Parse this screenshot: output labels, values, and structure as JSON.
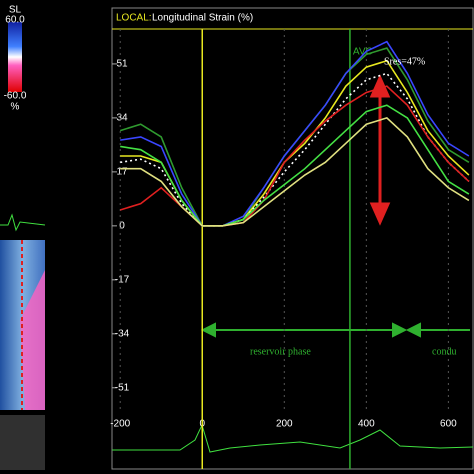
{
  "chart_data": {
    "type": "line",
    "header_label": "LOCAL:",
    "title": "Longitudinal Strain (%)",
    "x": [
      -200,
      -150,
      -100,
      -50,
      0,
      50,
      100,
      150,
      200,
      250,
      300,
      350,
      400,
      450,
      500,
      550,
      600,
      650
    ],
    "series": [
      {
        "color": "#2f9a2f",
        "values": [
          30,
          32,
          28,
          12,
          0,
          0,
          2,
          12,
          22,
          30,
          38,
          48,
          54,
          56,
          46,
          33,
          24,
          20
        ]
      },
      {
        "color": "#3a46ff",
        "values": [
          27,
          28,
          25,
          10,
          0,
          0,
          3,
          12,
          22,
          30,
          38,
          48,
          55,
          58,
          48,
          35,
          26,
          22
        ]
      },
      {
        "color": "#e8e820",
        "values": [
          22,
          22,
          20,
          8,
          0,
          0,
          2,
          10,
          20,
          26,
          34,
          44,
          50,
          52,
          42,
          30,
          22,
          16
        ]
      },
      {
        "color": "#ffffff",
        "values": [
          20,
          21,
          18,
          7,
          0,
          0,
          2,
          9,
          17,
          24,
          32,
          40,
          46,
          48,
          40,
          28,
          20,
          14
        ]
      },
      {
        "color": "#e02020",
        "values": [
          5,
          7,
          12,
          6,
          0,
          0,
          1,
          8,
          20,
          27,
          33,
          38,
          42,
          44,
          38,
          28,
          20,
          14
        ]
      },
      {
        "color": "#44e044",
        "values": [
          25,
          24,
          20,
          8,
          0,
          0,
          2,
          8,
          13,
          18,
          24,
          30,
          36,
          38,
          34,
          24,
          14,
          10
        ]
      },
      {
        "color": "#e0e080",
        "values": [
          18,
          18,
          14,
          6,
          0,
          0,
          1,
          6,
          11,
          16,
          20,
          26,
          32,
          34,
          28,
          18,
          12,
          8
        ]
      }
    ],
    "xlim": [
      -220,
      660
    ],
    "xticks": [
      -200,
      0,
      200,
      400,
      600
    ],
    "ylim": [
      -58,
      62
    ],
    "yticks": [
      51,
      34,
      17,
      0,
      -17,
      -34,
      -51
    ],
    "markers": [
      {
        "x": 0,
        "color": "#e8e820"
      },
      {
        "x": 360,
        "color": "#2fb02f",
        "label": "AVC"
      }
    ],
    "annotations": [
      "Sres=47%",
      "reservoir  phase",
      "condu"
    ]
  },
  "left_panel": {
    "scale_name": "SL",
    "max": "60.0",
    "min": "-60.0",
    "unit": "%"
  }
}
